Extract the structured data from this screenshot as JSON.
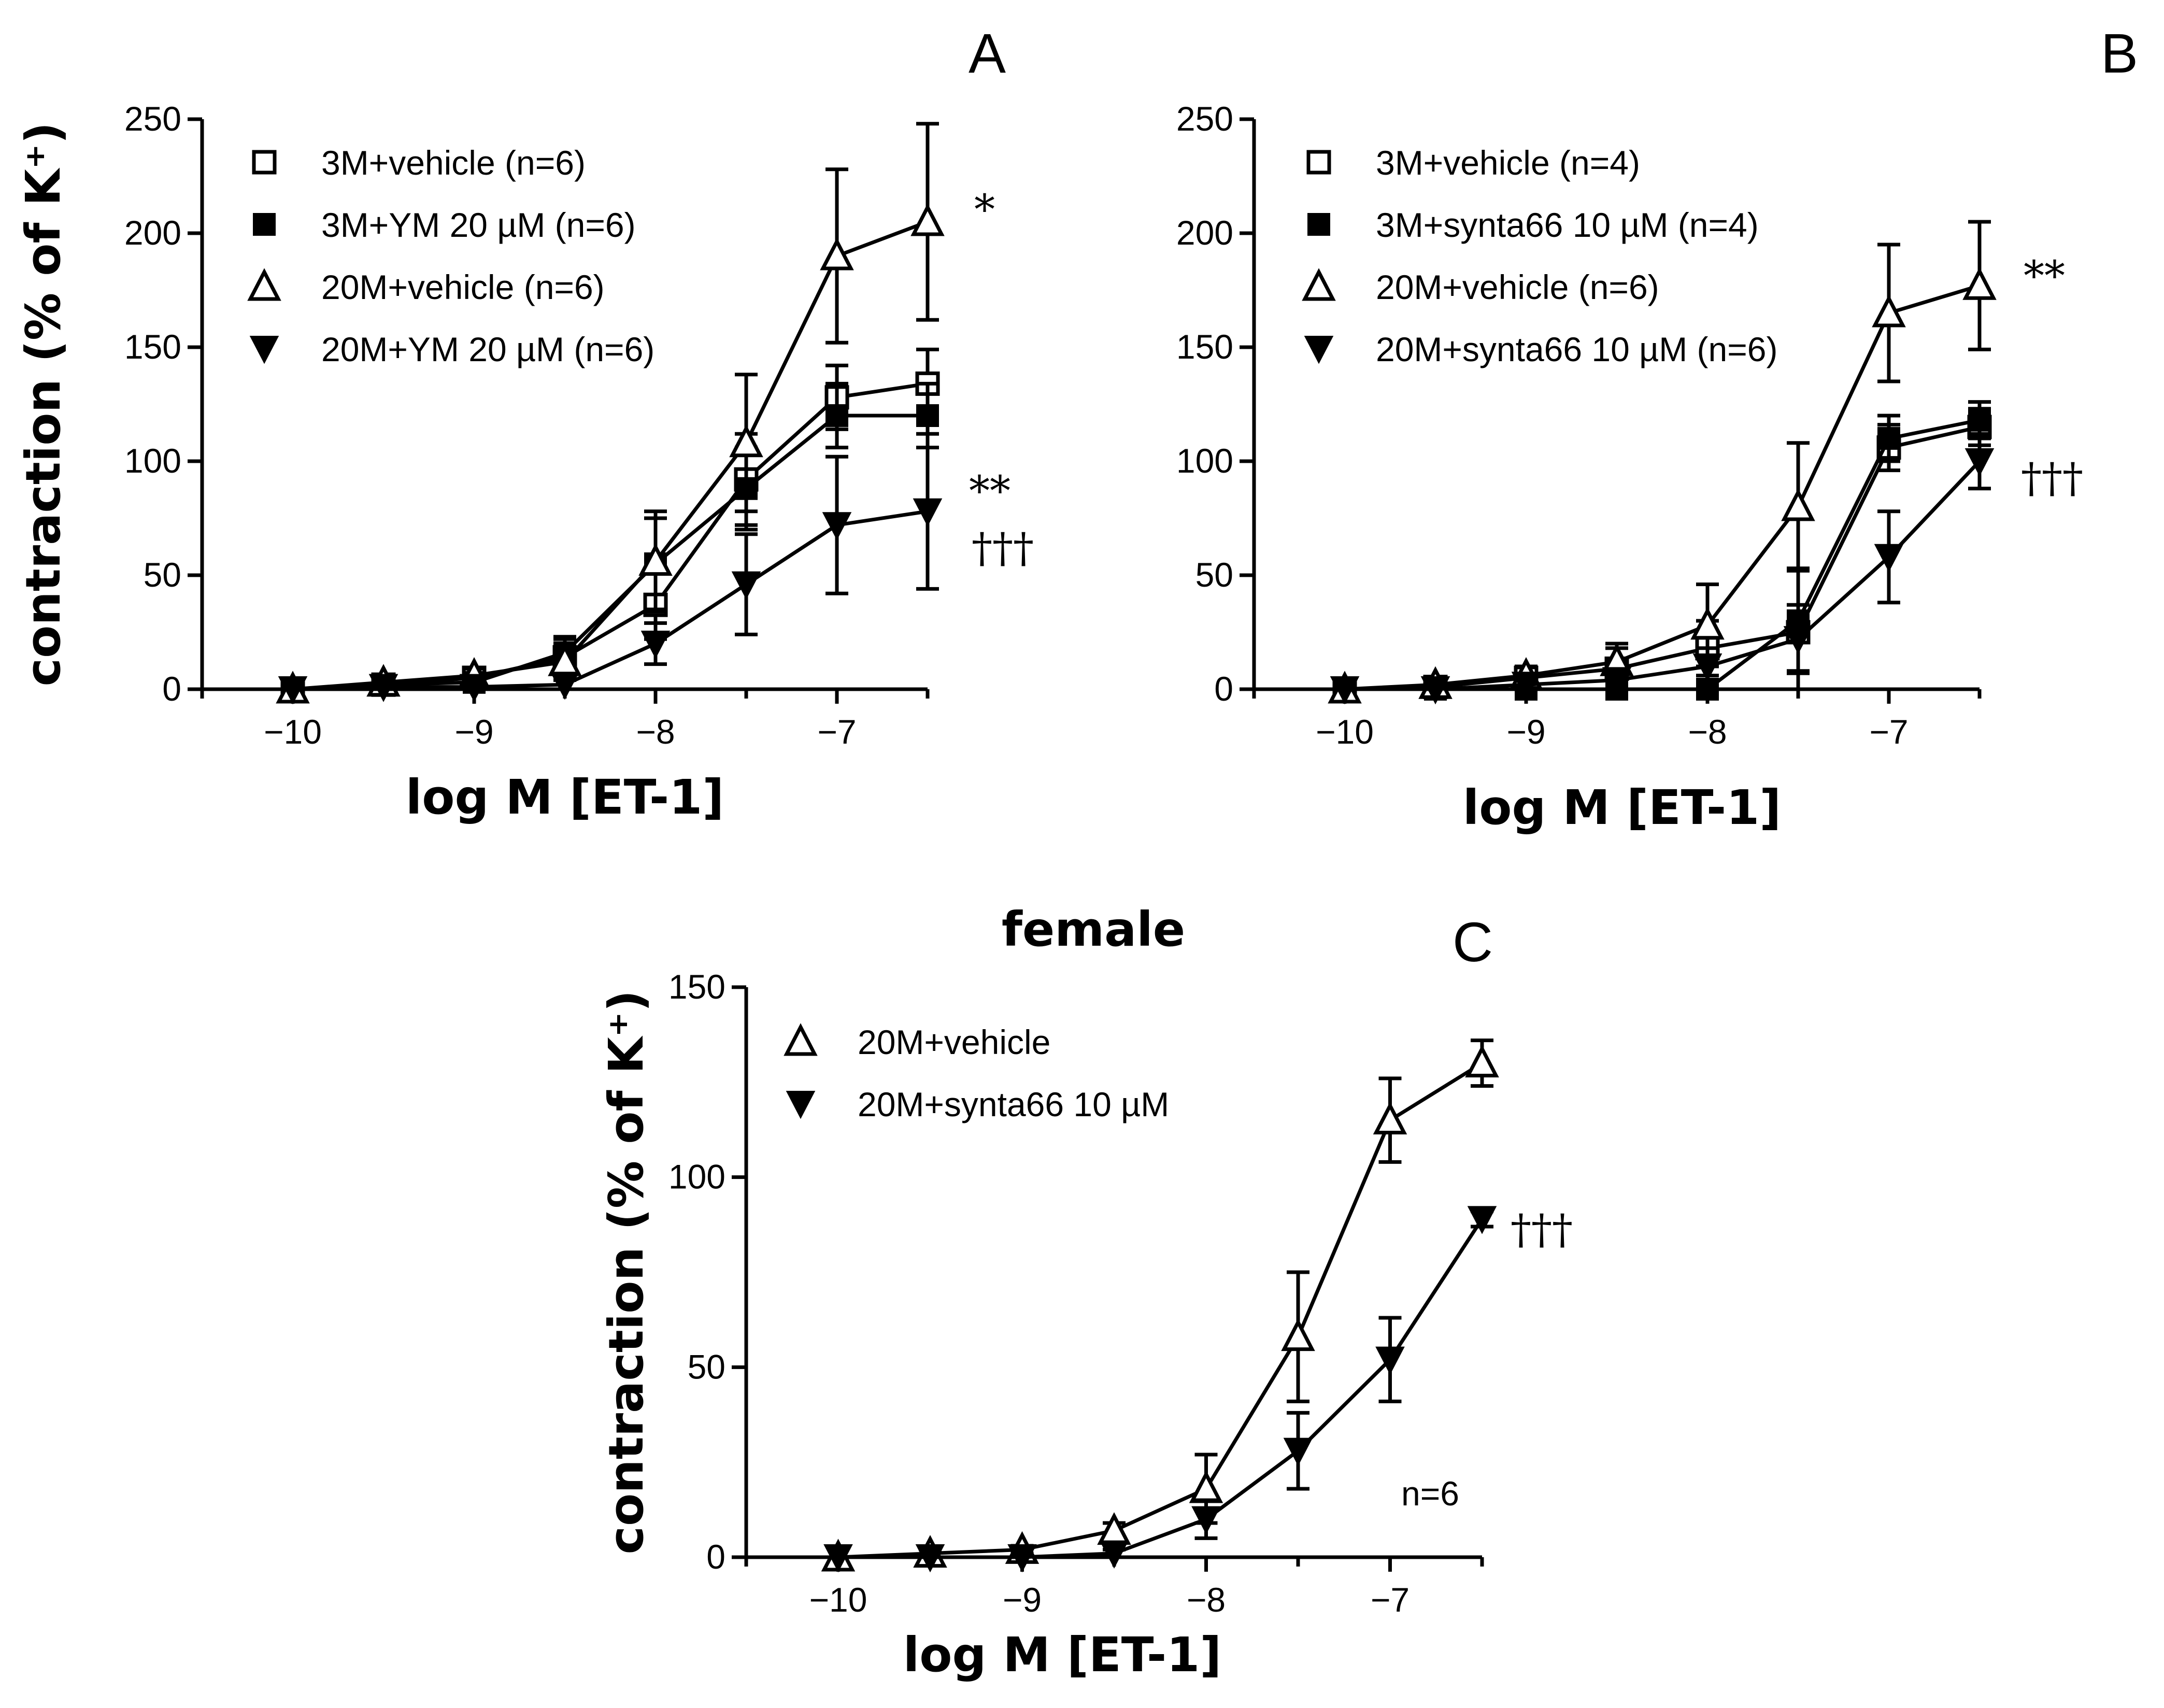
{
  "figure": {
    "chart_data": [
      {
        "id": "A",
        "type": "line",
        "panel_letter": "A",
        "title": "",
        "xlabel": "log M [ET-1]",
        "ylabel": "contraction (% of K⁺)",
        "xlim": [
          -10.5,
          -6.5
        ],
        "ylim": [
          0,
          250
        ],
        "xticks": [
          -10,
          -9,
          -8,
          -7
        ],
        "xtick_labels": [
          "−10",
          "−9",
          "−8",
          "−7"
        ],
        "yticks": [
          0,
          50,
          100,
          150,
          200,
          250
        ],
        "ytick_labels": [
          "0",
          "50",
          "100",
          "150",
          "200",
          "250"
        ],
        "x": [
          -10,
          -9.5,
          -9,
          -8.5,
          -8,
          -7.5,
          -7,
          -6.5
        ],
        "legend_position": "top-left",
        "series": [
          {
            "name": "3M+vehicle (n=6)",
            "marker": "square-open",
            "values": [
              0,
              2,
              5,
              14,
              37,
              92,
              128,
              134
            ],
            "errors": [
              0,
              2,
              3,
              8,
              15,
              20,
              14,
              15
            ]
          },
          {
            "name": "3M+YM 20 µM (n=6)",
            "marker": "square-filled",
            "values": [
              0,
              2,
              3,
              16,
              55,
              88,
              120,
              120
            ],
            "errors": [
              0,
              1,
              2,
              7,
              20,
              18,
              14,
              14
            ]
          },
          {
            "name": "20M+vehicle (n=6)",
            "marker": "triangle-up-open",
            "values": [
              0,
              3,
              6,
              12,
              56,
              108,
              190,
              205
            ],
            "errors": [
              0,
              2,
              3,
              8,
              22,
              30,
              38,
              43
            ]
          },
          {
            "name": "20M+YM 20 µM (n=6)",
            "marker": "triangle-down-filled",
            "values": [
              0,
              1,
              1,
              2,
              20,
              46,
              72,
              78
            ],
            "errors": [
              0,
              1,
              1,
              2,
              9,
              22,
              30,
              34
            ]
          }
        ],
        "annotations": [
          {
            "text": "*",
            "series_index": 2
          },
          {
            "text": "**",
            "series_index": 3,
            "stack": 0
          },
          {
            "text": "†††",
            "series_index": 3,
            "stack": 1
          }
        ]
      },
      {
        "id": "B",
        "type": "line",
        "panel_letter": "B",
        "title": "",
        "xlabel": "log M [ET-1]",
        "ylabel": "",
        "xlim": [
          -10.5,
          -6.5
        ],
        "ylim": [
          0,
          250
        ],
        "xticks": [
          -10,
          -9,
          -8,
          -7
        ],
        "xtick_labels": [
          "−10",
          "−9",
          "−8",
          "−7"
        ],
        "yticks": [
          0,
          50,
          100,
          150,
          200,
          250
        ],
        "ytick_labels": [
          "0",
          "50",
          "100",
          "150",
          "200",
          "250"
        ],
        "x": [
          -10,
          -9.5,
          -9,
          -8.5,
          -8,
          -7.5,
          -7,
          -6.5
        ],
        "legend_position": "top-left",
        "series": [
          {
            "name": "3M+vehicle (n=4)",
            "marker": "square-open",
            "values": [
              0,
              1,
              5,
              9,
              18,
              25,
              106,
              115
            ],
            "errors": [
              0,
              1,
              3,
              9,
              12,
              28,
              10,
              8
            ]
          },
          {
            "name": "3M+synta66 10 µM (n=4)",
            "marker": "square-filled",
            "values": [
              0,
              0,
              0,
              0,
              0,
              30,
              110,
              118
            ],
            "errors": [
              0,
              0,
              0,
              0,
              0,
              22,
              10,
              8
            ]
          },
          {
            "name": "20M+vehicle (n=6)",
            "marker": "triangle-up-open",
            "values": [
              0,
              2,
              6,
              12,
              28,
              80,
              165,
              177
            ],
            "errors": [
              0,
              2,
              4,
              8,
              18,
              28,
              30,
              28
            ]
          },
          {
            "name": "20M+synta66 10 µM (n=6)",
            "marker": "triangle-down-filled",
            "values": [
              0,
              0,
              2,
              4,
              10,
              22,
              58,
              100
            ],
            "errors": [
              0,
              0,
              2,
              4,
              8,
              15,
              20,
              12
            ]
          }
        ],
        "annotations": [
          {
            "text": "**",
            "series_index": 2
          },
          {
            "text": "†††",
            "series_index": 3
          }
        ]
      },
      {
        "id": "C",
        "type": "line",
        "panel_letter": "C",
        "title": "female",
        "xlabel": "log M [ET-1]",
        "ylabel": "contraction (% of K⁺)",
        "xlim": [
          -10.5,
          -6.5
        ],
        "ylim": [
          0,
          150
        ],
        "xticks": [
          -10,
          -9,
          -8,
          -7
        ],
        "xtick_labels": [
          "−10",
          "−9",
          "−8",
          "−7"
        ],
        "yticks": [
          0,
          50,
          100,
          150
        ],
        "ytick_labels": [
          "0",
          "50",
          "100",
          "150"
        ],
        "x": [
          -10,
          -9.5,
          -9,
          -8.5,
          -8,
          -7.5,
          -7,
          -6.5
        ],
        "legend_position": "top-left",
        "note": "n=6",
        "series": [
          {
            "name": "20M+vehicle",
            "marker": "triangle-up-open",
            "values": [
              0,
              1,
              2,
              7,
              18,
              58,
              115,
              130
            ],
            "errors": [
              0,
              1,
              1,
              2,
              9,
              17,
              11,
              6
            ]
          },
          {
            "name": "20M+synta66 10 µM",
            "marker": "triangle-down-filled",
            "values": [
              0,
              0,
              0,
              1,
              10,
              28,
              52,
              89
            ],
            "errors": [
              0,
              0,
              0,
              1,
              5,
              10,
              11,
              2
            ]
          }
        ],
        "annotations": [
          {
            "text": "†††",
            "series_index": 1
          }
        ]
      }
    ]
  }
}
